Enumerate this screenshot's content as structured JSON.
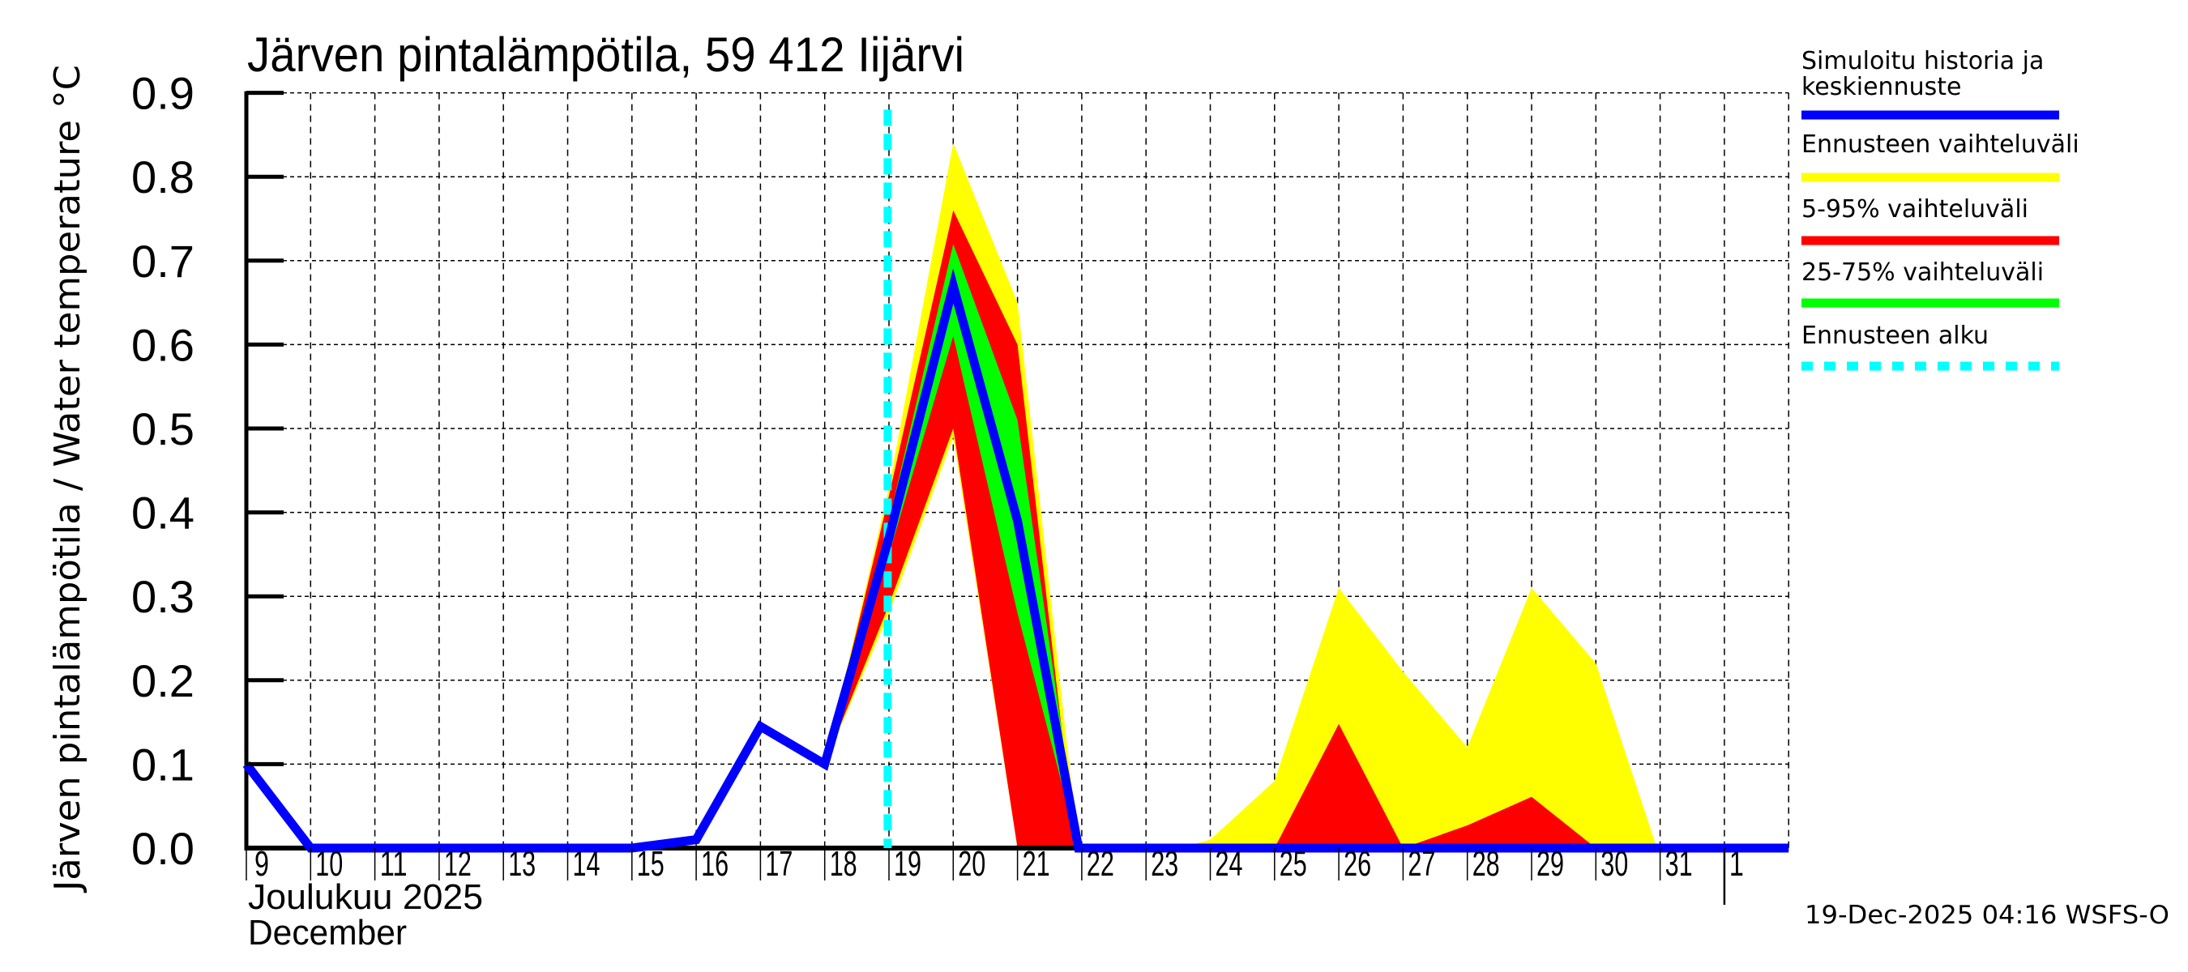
{
  "chart_data": {
    "type": "area",
    "title": "Järven pintalämpötila, 59 412 Iijärvi",
    "ylabel": "Järven pintalämpötila / Water temperature °C",
    "xlabel_line1": "Joulukuu  2025",
    "xlabel_line2": "December",
    "ylim": [
      0.0,
      0.9
    ],
    "yticks": [
      "0.0",
      "0.1",
      "0.2",
      "0.3",
      "0.4",
      "0.5",
      "0.6",
      "0.7",
      "0.8",
      "0.9"
    ],
    "xlim_day": [
      9,
      33
    ],
    "xticks": [
      {
        "day": 9,
        "label": "9"
      },
      {
        "day": 10,
        "label": "10"
      },
      {
        "day": 11,
        "label": "11"
      },
      {
        "day": 12,
        "label": "12"
      },
      {
        "day": 13,
        "label": "13"
      },
      {
        "day": 14,
        "label": "14"
      },
      {
        "day": 15,
        "label": "15"
      },
      {
        "day": 16,
        "label": "16"
      },
      {
        "day": 17,
        "label": "17"
      },
      {
        "day": 18,
        "label": "18"
      },
      {
        "day": 19,
        "label": "19"
      },
      {
        "day": 20,
        "label": "20"
      },
      {
        "day": 21,
        "label": "21"
      },
      {
        "day": 22,
        "label": "22"
      },
      {
        "day": 23,
        "label": "23"
      },
      {
        "day": 24,
        "label": "24"
      },
      {
        "day": 25,
        "label": "25"
      },
      {
        "day": 26,
        "label": "26"
      },
      {
        "day": 27,
        "label": "27"
      },
      {
        "day": 28,
        "label": "28"
      },
      {
        "day": 29,
        "label": "29"
      },
      {
        "day": 30,
        "label": "30"
      },
      {
        "day": 31,
        "label": "31"
      },
      {
        "day": 32,
        "label": "1"
      }
    ],
    "month_divider_day": 32,
    "grid": true,
    "forecast_start_day": 18.98,
    "series": [
      {
        "name": "Ennusteen vaihteluväli",
        "kind": "band",
        "color": "#ffff00",
        "x": [
          18,
          19,
          20,
          21,
          21.95,
          23.5,
          24,
          25,
          26,
          27,
          28,
          29,
          30,
          30.95
        ],
        "lower": [
          0.1,
          0.28,
          0.49,
          0.0,
          0.0,
          0.0,
          0.0,
          0.0,
          0.0,
          0.0,
          0.0,
          0.0,
          0.0,
          0.0
        ],
        "upper": [
          0.1,
          0.43,
          0.84,
          0.65,
          0.0,
          0.0,
          0.01,
          0.08,
          0.31,
          0.21,
          0.12,
          0.31,
          0.22,
          0.0
        ]
      },
      {
        "name": "5-95% vaihteluväli",
        "kind": "band",
        "color": "#ff0000",
        "x": [
          18,
          19,
          20,
          21,
          21.9,
          25,
          26,
          27,
          28,
          29,
          30
        ],
        "lower": [
          0.1,
          0.29,
          0.5,
          0.0,
          0.0,
          0.0,
          0.0,
          0.0,
          0.0,
          0.0,
          0.0
        ],
        "upper": [
          0.1,
          0.42,
          0.76,
          0.6,
          0.0,
          0.0,
          0.148,
          0.0,
          0.027,
          0.061,
          0.0
        ]
      },
      {
        "name": "25-75% vaihteluväli",
        "kind": "band",
        "color": "#00ff00",
        "x": [
          18,
          19,
          20,
          21,
          21.95
        ],
        "lower": [
          0.1,
          0.35,
          0.61,
          0.28,
          0.0
        ],
        "upper": [
          0.1,
          0.39,
          0.72,
          0.51,
          0.0
        ]
      },
      {
        "name": "Simuloitu historia ja keskiennuste",
        "kind": "line",
        "color": "#0000ff",
        "x": [
          9,
          10,
          11,
          12,
          13,
          14,
          15,
          16,
          17,
          18,
          19,
          20,
          21,
          21.95,
          22,
          23,
          24,
          25,
          26,
          27,
          28,
          29,
          30,
          31,
          32,
          33
        ],
        "values": [
          0.1,
          0.0,
          0.0,
          0.0,
          0.0,
          0.0,
          0.0,
          0.01,
          0.145,
          0.1,
          0.37,
          0.67,
          0.39,
          0.0,
          0.0,
          0.0,
          0.0,
          0.0,
          0.0,
          0.0,
          0.0,
          0.0,
          0.0,
          0.0,
          0.0,
          0.0
        ]
      }
    ],
    "legend_position": "right",
    "legend": [
      {
        "label_lines": [
          "Simuloitu historia ja",
          "keskiennuste"
        ],
        "color": "#0000ff",
        "style": "solid"
      },
      {
        "label_lines": [
          "Ennusteen vaihteluväli"
        ],
        "color": "#ffff00",
        "style": "solid"
      },
      {
        "label_lines": [
          "5-95% vaihteluväli"
        ],
        "color": "#ff0000",
        "style": "solid"
      },
      {
        "label_lines": [
          "25-75% vaihteluväli"
        ],
        "color": "#00ff00",
        "style": "solid"
      },
      {
        "label_lines": [
          "Ennusteen alku"
        ],
        "color": "#00ffff",
        "style": "dashed"
      }
    ],
    "footer_stamp": "19-Dec-2025 04:16 WSFS-O"
  },
  "colors": {
    "history_line": "#0000ff",
    "range_full": "#ffff00",
    "range_5_95": "#ff0000",
    "range_25_75": "#00ff00",
    "forecast_start": "#00ffff",
    "axis": "#000000"
  }
}
